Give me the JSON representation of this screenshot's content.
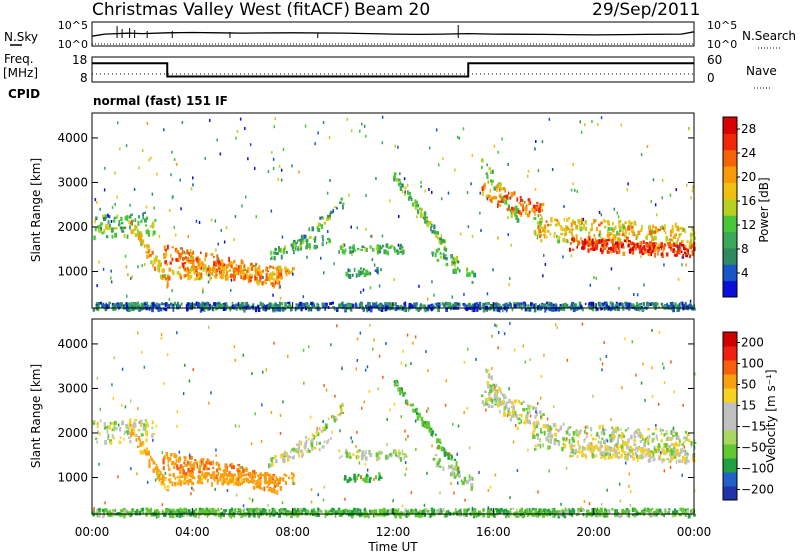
{
  "header": {
    "station": "Christmas Valley West (fitACF)",
    "beam": "Beam 20",
    "date": "29/Sep/2011"
  },
  "summary": {
    "nsky_label": "N.Sky",
    "nsky_ticks": [
      "10^5",
      "10^0"
    ],
    "nsearch_label": "N.Search",
    "nsearch_ticks": [
      "10^5",
      "10^0"
    ],
    "freq_label": "Freq.",
    "freq_unit": "[MHz]",
    "freq_ticks": [
      "18",
      "8"
    ],
    "nave_label": "Nave",
    "nave_ticks": [
      "60",
      "0"
    ],
    "cpid_label": "CPID",
    "cpid_value": "normal (fast) 151 IF"
  },
  "colors": {
    "power_scale": [
      "#0a10d8",
      "#1a55c8",
      "#2f8a62",
      "#3aa858",
      "#48c838",
      "#b8d020",
      "#f0c010",
      "#f79a08",
      "#f86206",
      "#f02808",
      "#d80000"
    ],
    "velocity_scale": [
      "#2033a8",
      "#2060c8",
      "#20a040",
      "#60c830",
      "#a8d860",
      "#c0c0c0",
      "#c0c0c0",
      "#f8d020",
      "#f8a010",
      "#f86010",
      "#f02010",
      "#d00000"
    ]
  },
  "chart_data": [
    {
      "type": "line",
      "name": "summary-nsky-nsearch",
      "ylabel": "N.Sky",
      "x_range_hours": [
        0,
        24
      ],
      "y_scale": "log",
      "series": [
        {
          "name": "N.Sky",
          "x": [
            0,
            0.5,
            1,
            1.5,
            2,
            3,
            4,
            5,
            6,
            8,
            10,
            12,
            13,
            14,
            15,
            16,
            18,
            20,
            22,
            23.5,
            24
          ],
          "values": [
            100,
            300,
            400,
            500,
            400,
            600,
            700,
            600,
            500,
            600,
            500,
            300,
            250,
            300,
            400,
            300,
            250,
            200,
            250,
            300,
            1000
          ]
        },
        {
          "name": "N.Search",
          "x": [
            0,
            24
          ],
          "values": [
            1,
            1
          ]
        }
      ]
    },
    {
      "type": "line",
      "name": "summary-freq-nave",
      "x_range_hours": [
        0,
        24
      ],
      "series": [
        {
          "name": "Freq.",
          "unit": "MHz",
          "x": [
            0,
            3,
            3,
            15,
            15,
            24
          ],
          "values": [
            16.5,
            16.5,
            10.5,
            10.5,
            16.5,
            16.5
          ]
        },
        {
          "name": "Nave",
          "x": [
            0,
            24
          ],
          "values": [
            14,
            14
          ]
        }
      ],
      "ylim_freq": [
        8,
        18
      ],
      "ylim_nave": [
        0,
        60
      ]
    },
    {
      "type": "heatmap",
      "name": "power",
      "ylabel": "Slant Range [km]",
      "colorbar_label": "Power [dB]",
      "colorbar_ticks": [
        "4",
        "8",
        "12",
        "16",
        "20",
        "24",
        "28"
      ],
      "y_ticks": [
        "1000",
        "2000",
        "3000",
        "4000"
      ],
      "x_range_hours": [
        0,
        24
      ],
      "ylim": [
        180,
        4560
      ],
      "color_range": [
        0,
        30
      ]
    },
    {
      "type": "heatmap",
      "name": "velocity",
      "ylabel": "Slant Range [km]",
      "colorbar_label": "Velocity [m s⁻¹]",
      "colorbar_ticks": [
        "200",
        "100",
        "50",
        "15",
        "−15",
        "−50",
        "−100",
        "−200"
      ],
      "y_ticks": [
        "1000",
        "2000",
        "3000",
        "4000"
      ],
      "xlabel": "Time UT",
      "x_ticks": [
        "00:00",
        "04:00",
        "08:00",
        "12:00",
        "16:00",
        "20:00",
        "00:00"
      ],
      "x_range_hours": [
        0,
        24
      ],
      "ylim": [
        180,
        4560
      ],
      "color_range": [
        -250,
        250
      ]
    }
  ]
}
